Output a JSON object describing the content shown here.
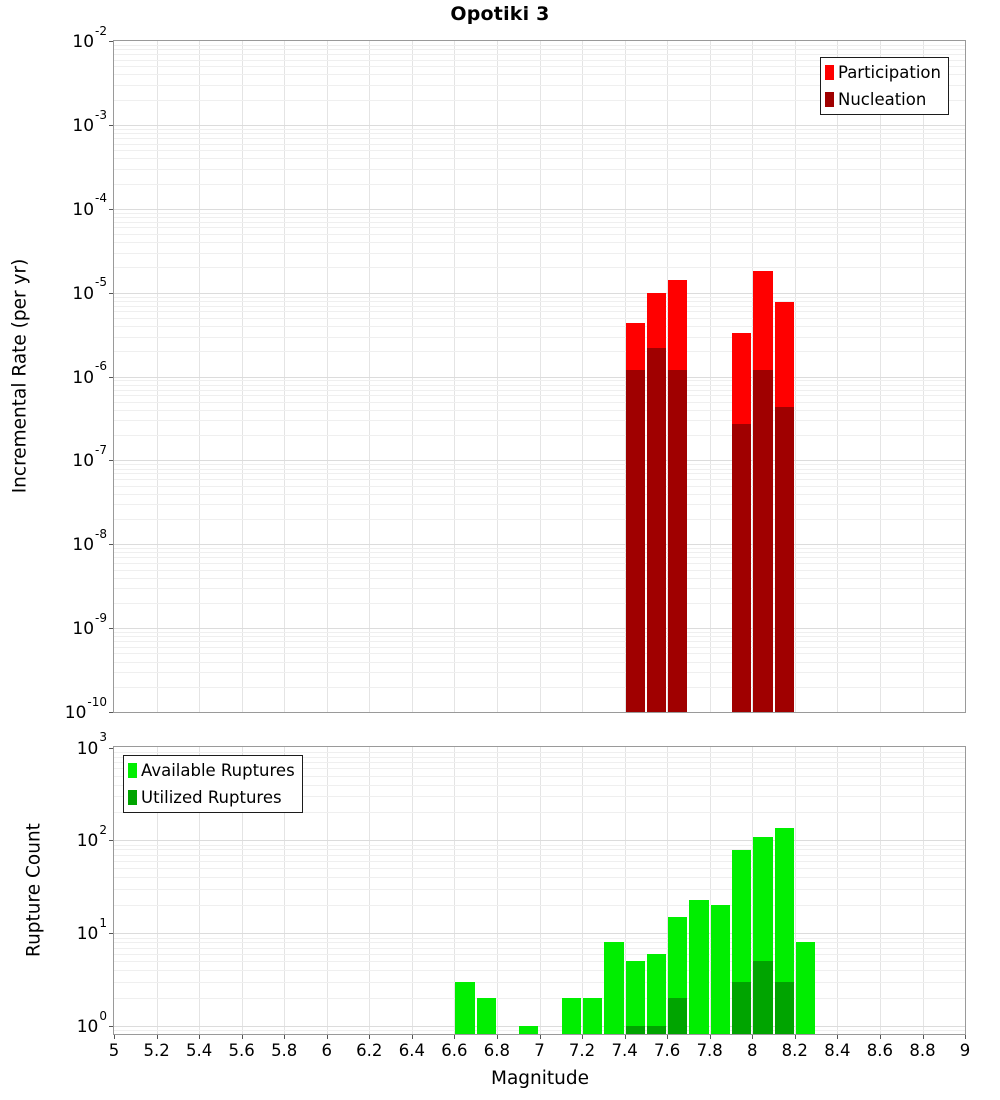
{
  "title": "Opotiki 3",
  "axes": {
    "x": {
      "label": "Magnitude",
      "min": 5,
      "max": 9,
      "step": 0.2,
      "ticks": [
        "5",
        "5.2",
        "5.4",
        "5.6",
        "5.8",
        "6",
        "6.2",
        "6.4",
        "6.6",
        "6.8",
        "7",
        "7.2",
        "7.4",
        "7.6",
        "7.8",
        "8",
        "8.2",
        "8.4",
        "8.6",
        "8.8",
        "9"
      ]
    },
    "top_y": {
      "label": "Incremental Rate (per yr)",
      "tick_exponents": [
        -2,
        -3,
        -4,
        -5,
        -6,
        -7,
        -8,
        -9,
        -10
      ]
    },
    "bottom_y": {
      "label": "Rupture Count",
      "tick_exponents": [
        3,
        2,
        1,
        0
      ]
    }
  },
  "colors": {
    "participation": "#ff0000",
    "nucleation": "#a00000",
    "available": "#00ee00",
    "utilized": "#00a400",
    "grid_major": "#dcdcdc",
    "grid_minor": "#efefef",
    "axis_border": "#9a9a9a"
  },
  "chart_data": [
    {
      "type": "bar",
      "title": "Opotiki 3",
      "xlabel": "Magnitude",
      "ylabel": "Incremental Rate (per yr)",
      "yscale": "log",
      "ylim": [
        1e-10,
        0.01
      ],
      "xlim": [
        5,
        9
      ],
      "bin_width": 0.1,
      "grid": true,
      "legend_position": "top-right",
      "x": [
        7.45,
        7.55,
        7.65,
        7.95,
        8.05,
        8.15
      ],
      "series": [
        {
          "name": "Participation",
          "color": "#ff0000",
          "values": [
            4.3e-06,
            1e-05,
            1.4e-05,
            3.3e-06,
            1.8e-05,
            7.8e-06
          ]
        },
        {
          "name": "Nucleation",
          "color": "#a00000",
          "values": [
            1.2e-06,
            2.2e-06,
            1.2e-06,
            2.7e-07,
            1.2e-06,
            4.3e-07
          ]
        }
      ]
    },
    {
      "type": "bar",
      "xlabel": "Magnitude",
      "ylabel": "Rupture Count",
      "yscale": "log",
      "ylim": [
        1,
        1000
      ],
      "xlim": [
        5,
        9
      ],
      "bin_width": 0.1,
      "grid": true,
      "legend_position": "top-left",
      "x": [
        6.65,
        6.75,
        6.95,
        7.15,
        7.25,
        7.35,
        7.45,
        7.55,
        7.65,
        7.75,
        7.85,
        7.95,
        8.05,
        8.15,
        8.25
      ],
      "series": [
        {
          "name": "Available Ruptures",
          "color": "#00ee00",
          "values": [
            3,
            2,
            1,
            2,
            2,
            8,
            5,
            6,
            15,
            23,
            20,
            78,
            110,
            137,
            8
          ]
        },
        {
          "name": "Utilized Ruptures",
          "color": "#00a400",
          "values": [
            0,
            0,
            0,
            0,
            0,
            0,
            1,
            1,
            2,
            0,
            0,
            3,
            5,
            3,
            0
          ]
        }
      ]
    }
  ]
}
